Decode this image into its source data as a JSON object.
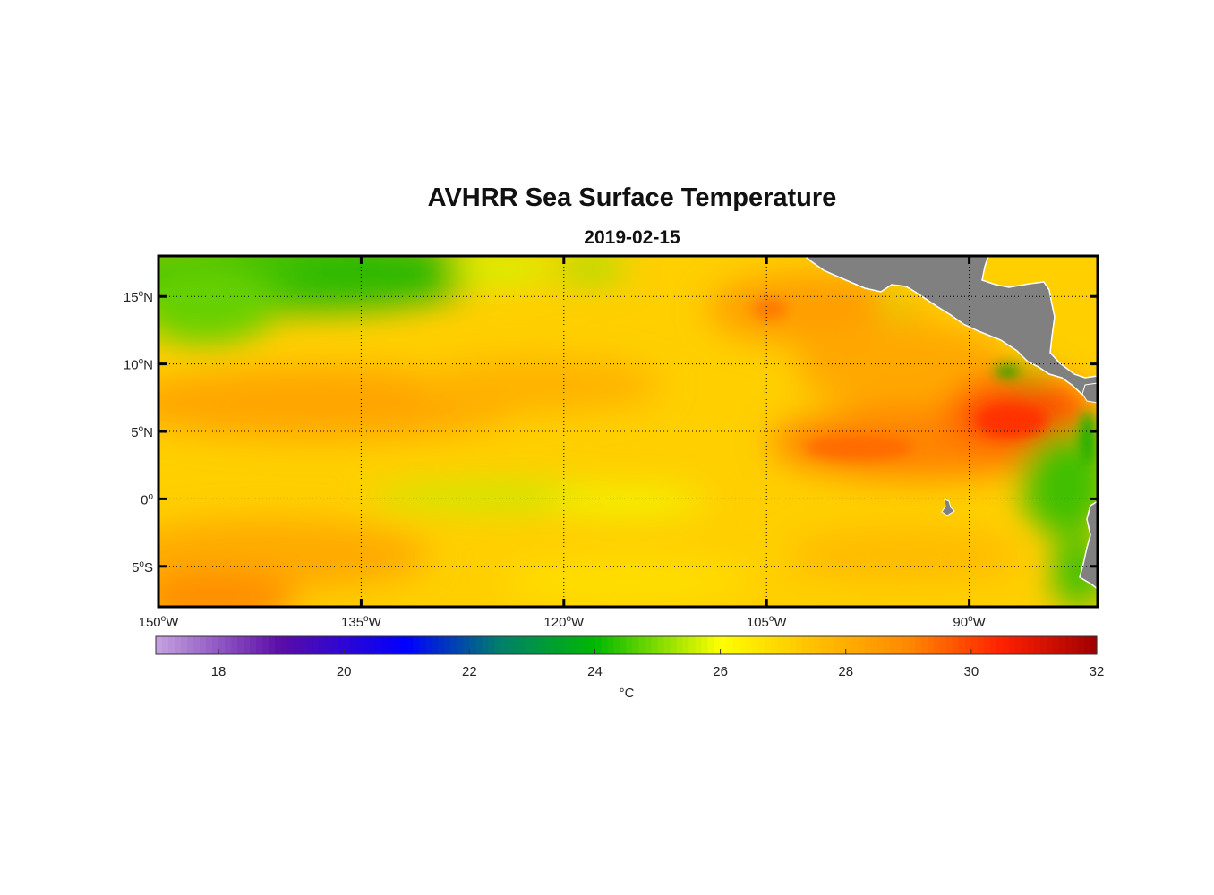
{
  "title": "AVHRR Sea Surface Temperature",
  "date": "2019-02-15",
  "map": {
    "lon_range": [
      -150,
      -80.5
    ],
    "lat_range": [
      -8,
      18
    ],
    "lon_ticks": [
      {
        "value": -150,
        "num": "150",
        "deg": "o",
        "hemi": "W"
      },
      {
        "value": -135,
        "num": "135",
        "deg": "o",
        "hemi": "W"
      },
      {
        "value": -120,
        "num": "120",
        "deg": "o",
        "hemi": "W"
      },
      {
        "value": -105,
        "num": "105",
        "deg": "o",
        "hemi": "W"
      },
      {
        "value": -90,
        "num": "90",
        "deg": "o",
        "hemi": "W"
      }
    ],
    "lat_ticks": [
      {
        "value": 15,
        "num": "15",
        "deg": "o",
        "hemi": "N"
      },
      {
        "value": 10,
        "num": "10",
        "deg": "o",
        "hemi": "N"
      },
      {
        "value": 5,
        "num": "5",
        "deg": "o",
        "hemi": "N"
      },
      {
        "value": 0,
        "num": "0",
        "deg": "o",
        "hemi": ""
      },
      {
        "value": -5,
        "num": "5",
        "deg": "o",
        "hemi": "S"
      }
    ],
    "land_color": "#808080",
    "grid": "dotted"
  },
  "colorbar": {
    "min": 17,
    "max": 32,
    "ticks": [
      {
        "value": 18,
        "label": "18"
      },
      {
        "value": 20,
        "label": "20"
      },
      {
        "value": 22,
        "label": "22"
      },
      {
        "value": 24,
        "label": "24"
      },
      {
        "value": 26,
        "label": "26"
      },
      {
        "value": 28,
        "label": "28"
      },
      {
        "value": 30,
        "label": "30"
      },
      {
        "value": 32,
        "label": "32"
      }
    ],
    "unit": "°C",
    "stops": [
      {
        "v": 17,
        "c": "#c6a3e0"
      },
      {
        "v": 19,
        "c": "#5a0ca8"
      },
      {
        "v": 21,
        "c": "#0000ff"
      },
      {
        "v": 22.5,
        "c": "#00806a"
      },
      {
        "v": 24,
        "c": "#00b800"
      },
      {
        "v": 26,
        "c": "#ffff00"
      },
      {
        "v": 27.5,
        "c": "#ffc000"
      },
      {
        "v": 29,
        "c": "#ff8800"
      },
      {
        "v": 30.5,
        "c": "#ff2000"
      },
      {
        "v": 32,
        "c": "#a00000"
      }
    ]
  }
}
